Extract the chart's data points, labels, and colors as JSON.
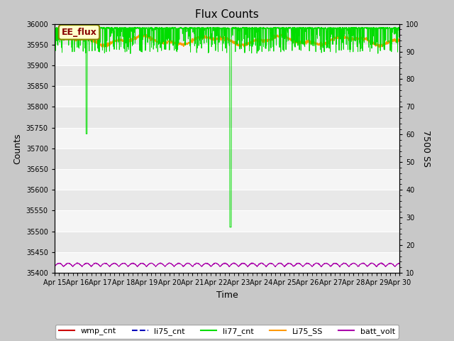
{
  "title": "Flux Counts",
  "xlabel": "Time",
  "ylabel_left": "Counts",
  "ylabel_right": "7500 SS",
  "xlim_days": [
    0,
    15
  ],
  "ylim_left": [
    35400,
    36000
  ],
  "ylim_right": [
    10,
    100
  ],
  "yticks_left": [
    35400,
    35450,
    35500,
    35550,
    35600,
    35650,
    35700,
    35750,
    35800,
    35850,
    35900,
    35950,
    36000
  ],
  "yticks_right": [
    10,
    20,
    30,
    40,
    50,
    60,
    70,
    80,
    90,
    100
  ],
  "xtick_labels": [
    "Apr 15",
    "Apr 16",
    "Apr 17",
    "Apr 18",
    "Apr 19",
    "Apr 20",
    "Apr 21",
    "Apr 22",
    "Apr 23",
    "Apr 24",
    "Apr 25",
    "Apr 26",
    "Apr 27",
    "Apr 28",
    "Apr 29",
    "Apr 30"
  ],
  "annotation_text": "EE_flux",
  "bg_color": "#e8e8e8",
  "band_color": "#f5f5f5",
  "legend_labels": [
    "wmp_cnt",
    "li75_cnt",
    "li77_cnt",
    "Li75_SS",
    "batt_volt"
  ],
  "legend_colors": [
    "#cc0000",
    "#0000bb",
    "#00dd00",
    "#ff9900",
    "#aa00aa"
  ],
  "li75_cnt_level": 35999,
  "wmp_cnt_level": 35999,
  "li75_ss_base": 35960,
  "li75_ss_amplitude": 8,
  "batt_volt_base": 35415,
  "batt_volt_amplitude": 8,
  "n_points": 2000,
  "green_base": 35990,
  "green_spike1_day": 1.4,
  "green_spike1_min": 35735,
  "green_spike2_day": 7.65,
  "green_spike2_min": 35510
}
